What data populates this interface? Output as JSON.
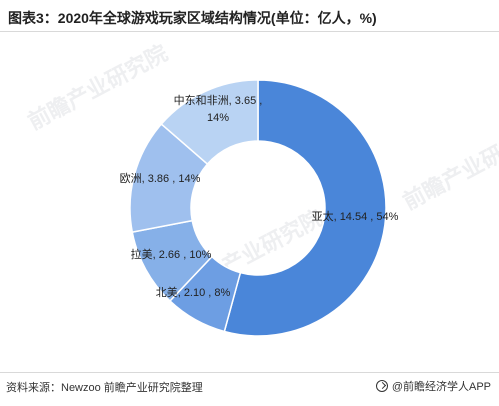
{
  "title": "图表3：2020年全球游戏玩家区域结构情况(单位：亿人，%)",
  "source": "资料来源：Newzoo 前瞻产业研究院整理",
  "brand": "@前瞻经济学人APP",
  "watermark": "前瞻产业研究院",
  "colors": {
    "亚太": "#4a86d9",
    "北美": "#6d9ee3",
    "拉美": "#86b0e8",
    "欧洲": "#9fc0ee",
    "中东和非洲": "#b9d3f3"
  },
  "chart_data": {
    "type": "pie",
    "donut": true,
    "unit": "亿人",
    "slices": [
      {
        "name": "亚太",
        "value": 14.54,
        "percent": 54,
        "label": "亚太, 14.54 , 54%"
      },
      {
        "name": "北美",
        "value": 2.1,
        "percent": 8,
        "label": "北美, 2.10 , 8%"
      },
      {
        "name": "拉美",
        "value": 2.66,
        "percent": 10,
        "label": "拉美, 2.66 , 10%"
      },
      {
        "name": "欧洲",
        "value": 3.86,
        "percent": 14,
        "label": "欧洲, 3.86 , 14%"
      },
      {
        "name": "中东和非洲",
        "value": 3.65,
        "percent": 14,
        "label_lines": [
          "中东和非洲, 3.65 ,",
          "14%"
        ]
      }
    ]
  }
}
